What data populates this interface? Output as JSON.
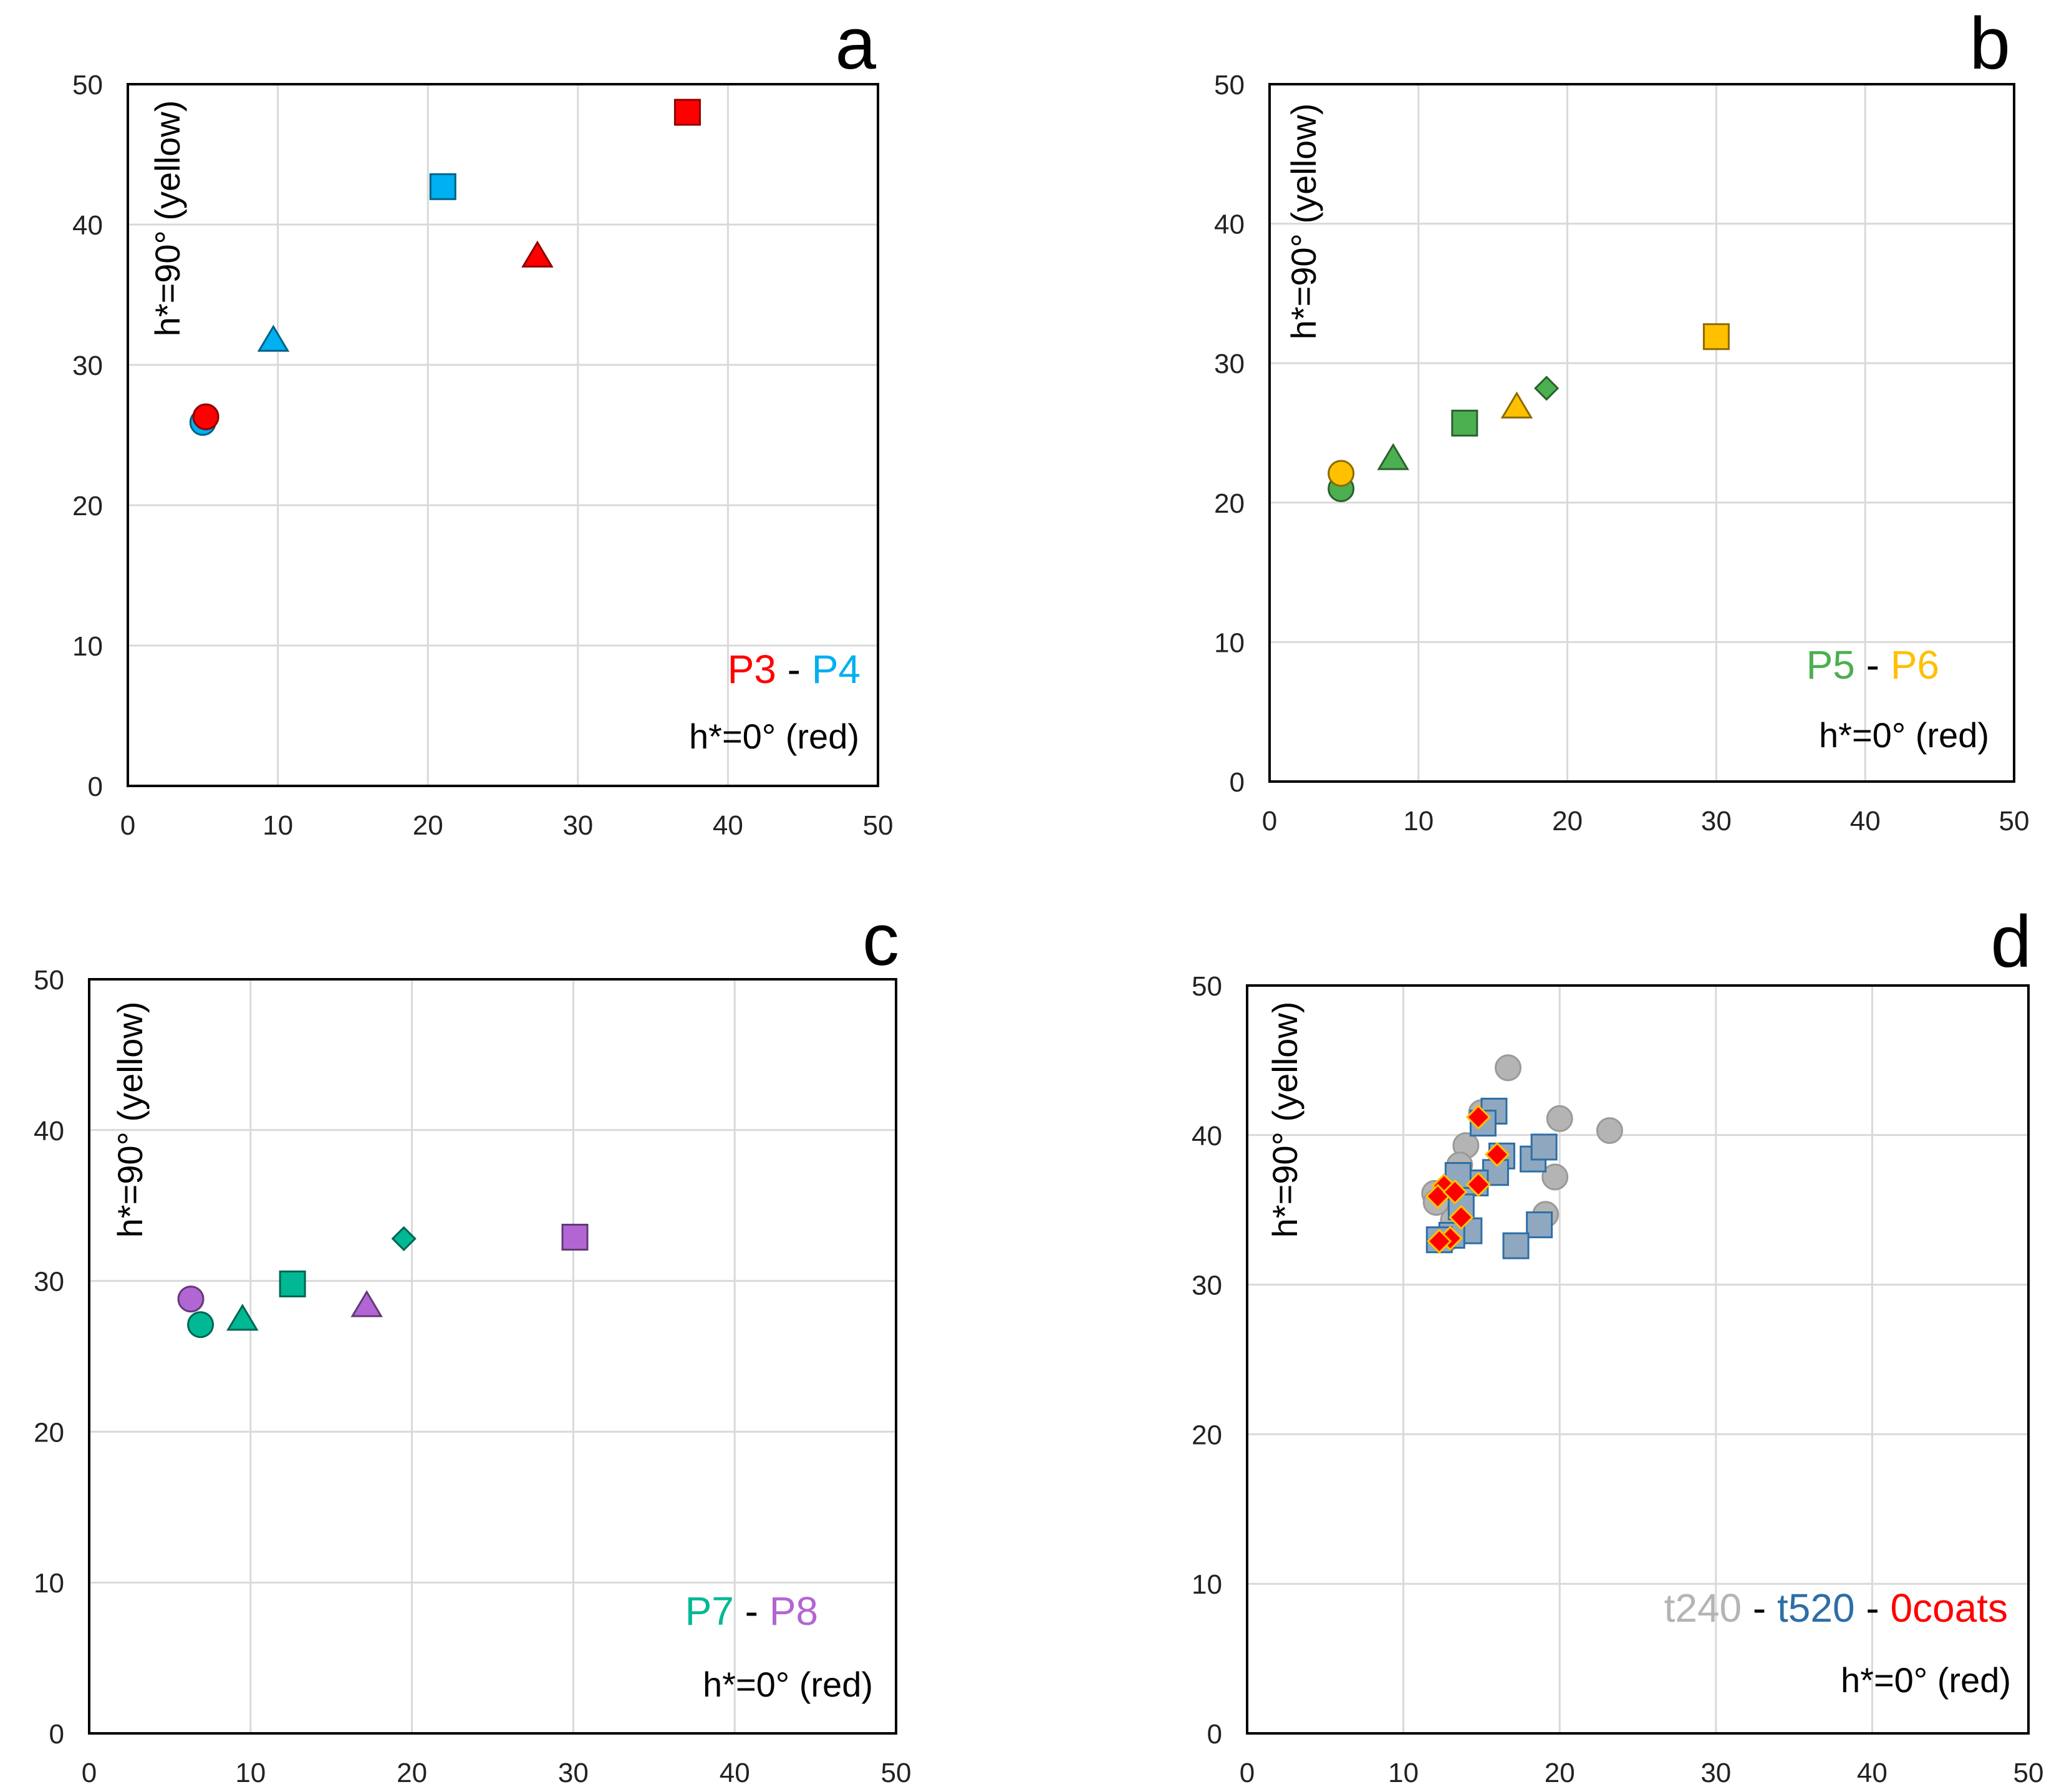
{
  "chart_data": [
    {
      "panel": "a",
      "type": "scatter",
      "title": "",
      "xlabel": "",
      "ylabel": "h*=90° (yellow)",
      "annotation": "h*=0° (red)",
      "xlim": [
        0,
        50
      ],
      "ylim": [
        0,
        50
      ],
      "x_ticks": [
        "0",
        "10",
        "20",
        "30",
        "40",
        "50"
      ],
      "y_ticks": [
        "0",
        "10",
        "20",
        "30",
        "40",
        "50"
      ],
      "grid": true,
      "legend": {
        "position": "bottom-right",
        "items": [
          {
            "text": "P3",
            "color": "#ff0000"
          },
          {
            "text": " - ",
            "color": "#000000"
          },
          {
            "text": "P4",
            "color": "#00b0f0"
          }
        ]
      },
      "series": [
        {
          "name": "P4",
          "color": "#00b0f0",
          "points": [
            {
              "x": 5,
              "y": 25.9,
              "marker": "circle"
            },
            {
              "x": 9.7,
              "y": 31.8,
              "marker": "triangle"
            },
            {
              "x": 21,
              "y": 42.7,
              "marker": "square"
            }
          ]
        },
        {
          "name": "P3",
          "color": "#ff0000",
          "points": [
            {
              "x": 5.2,
              "y": 26.3,
              "marker": "circle"
            },
            {
              "x": 27.3,
              "y": 37.8,
              "marker": "triangle"
            },
            {
              "x": 37.3,
              "y": 48,
              "marker": "square"
            }
          ]
        }
      ]
    },
    {
      "panel": "b",
      "type": "scatter",
      "title": "",
      "xlabel": "",
      "ylabel": "h*=90° (yellow)",
      "annotation": "h*=0° (red)",
      "xlim": [
        0,
        50
      ],
      "ylim": [
        0,
        50
      ],
      "x_ticks": [
        "0",
        "10",
        "20",
        "30",
        "40",
        "50"
      ],
      "y_ticks": [
        "0",
        "10",
        "20",
        "30",
        "40",
        "50"
      ],
      "grid": true,
      "legend": {
        "position": "bottom-right",
        "items": [
          {
            "text": "P5",
            "color": "#4caf50"
          },
          {
            "text": " - ",
            "color": "#000000"
          },
          {
            "text": "P6",
            "color": "#ffc000"
          }
        ]
      },
      "series": [
        {
          "name": "P5",
          "color": "#4caf50",
          "points": [
            {
              "x": 4.8,
              "y": 21,
              "marker": "circle"
            },
            {
              "x": 8.3,
              "y": 23.2,
              "marker": "triangle"
            },
            {
              "x": 13.1,
              "y": 25.7,
              "marker": "square"
            },
            {
              "x": 18.6,
              "y": 28.2,
              "marker": "diamond"
            }
          ]
        },
        {
          "name": "P6",
          "color": "#ffc000",
          "points": [
            {
              "x": 4.8,
              "y": 22.1,
              "marker": "circle"
            },
            {
              "x": 16.6,
              "y": 26.9,
              "marker": "triangle"
            },
            {
              "x": 30,
              "y": 31.9,
              "marker": "square"
            }
          ]
        }
      ]
    },
    {
      "panel": "c",
      "type": "scatter",
      "title": "",
      "xlabel": "",
      "ylabel": "h*=90° (yellow)",
      "annotation": "h*=0° (red)",
      "xlim": [
        0,
        50
      ],
      "ylim": [
        0,
        50
      ],
      "x_ticks": [
        "0",
        "10",
        "20",
        "30",
        "40",
        "50"
      ],
      "y_ticks": [
        "0",
        "10",
        "20",
        "30",
        "40",
        "50"
      ],
      "grid": true,
      "legend": {
        "position": "bottom-right",
        "items": [
          {
            "text": "P7",
            "color": "#00b894"
          },
          {
            "text": " - ",
            "color": "#000000"
          },
          {
            "text": "P8",
            "color": "#b266d4"
          }
        ]
      },
      "series": [
        {
          "name": "P8",
          "color": "#b266d4",
          "points": [
            {
              "x": 6.3,
              "y": 28.8,
              "marker": "circle"
            },
            {
              "x": 17.2,
              "y": 28.4,
              "marker": "triangle"
            },
            {
              "x": 30.1,
              "y": 32.9,
              "marker": "square"
            }
          ]
        },
        {
          "name": "P7",
          "color": "#00b894",
          "points": [
            {
              "x": 6.9,
              "y": 27.1,
              "marker": "circle"
            },
            {
              "x": 9.5,
              "y": 27.5,
              "marker": "triangle"
            },
            {
              "x": 12.6,
              "y": 29.8,
              "marker": "square"
            },
            {
              "x": 19.5,
              "y": 32.8,
              "marker": "diamond"
            }
          ]
        }
      ]
    },
    {
      "panel": "d",
      "type": "scatter",
      "title": "",
      "xlabel": "",
      "ylabel": "h*=90° (yellow)",
      "annotation": "h*=0° (red)",
      "xlim": [
        0,
        50
      ],
      "ylim": [
        0,
        50
      ],
      "x_ticks": [
        "0",
        "10",
        "20",
        "30",
        "40",
        "50"
      ],
      "y_ticks": [
        "0",
        "10",
        "20",
        "30",
        "40",
        "50"
      ],
      "grid": true,
      "legend": {
        "position": "bottom-right",
        "items": [
          {
            "text": "t240",
            "color": "#b4b4b4"
          },
          {
            "text": " - ",
            "color": "#000000"
          },
          {
            "text": "t520",
            "color": "#2e6ea6"
          },
          {
            "text": " - ",
            "color": "#000000"
          },
          {
            "text": "0coats",
            "color": "#ff0000"
          }
        ]
      },
      "series": [
        {
          "name": "t240",
          "color": "#b4b4b4",
          "points": [
            {
              "x": 16.7,
              "y": 44.5,
              "marker": "circle"
            },
            {
              "x": 20,
              "y": 41.1,
              "marker": "circle"
            },
            {
              "x": 23.2,
              "y": 40.3,
              "marker": "circle"
            },
            {
              "x": 19.7,
              "y": 37.2,
              "marker": "circle"
            },
            {
              "x": 19.1,
              "y": 34.7,
              "marker": "circle"
            },
            {
              "x": 14,
              "y": 39.3,
              "marker": "circle"
            },
            {
              "x": 13.6,
              "y": 38,
              "marker": "circle"
            },
            {
              "x": 12,
              "y": 36.1,
              "marker": "circle"
            },
            {
              "x": 12.1,
              "y": 35.5,
              "marker": "circle"
            },
            {
              "x": 15,
              "y": 41.5,
              "marker": "circle"
            },
            {
              "x": 13.2,
              "y": 34.3,
              "marker": "circle"
            },
            {
              "x": 12.8,
              "y": 33.1,
              "marker": "circle"
            }
          ]
        },
        {
          "name": "t520",
          "color": "#2e6ea6",
          "points": [
            {
              "x": 15.8,
              "y": 41.6,
              "marker": "square"
            },
            {
              "x": 15.1,
              "y": 40.8,
              "marker": "square"
            },
            {
              "x": 16.3,
              "y": 38.6,
              "marker": "square"
            },
            {
              "x": 15.9,
              "y": 37.5,
              "marker": "square"
            },
            {
              "x": 14.6,
              "y": 36.8,
              "marker": "square"
            },
            {
              "x": 13.5,
              "y": 37.3,
              "marker": "square"
            },
            {
              "x": 18.3,
              "y": 38.4,
              "marker": "square"
            },
            {
              "x": 19,
              "y": 39.2,
              "marker": "square"
            },
            {
              "x": 13.7,
              "y": 35.2,
              "marker": "square"
            },
            {
              "x": 14.2,
              "y": 33.6,
              "marker": "square"
            },
            {
              "x": 13.1,
              "y": 33.3,
              "marker": "square"
            },
            {
              "x": 12.3,
              "y": 33,
              "marker": "square"
            },
            {
              "x": 18.7,
              "y": 34,
              "marker": "square"
            },
            {
              "x": 17.2,
              "y": 32.6,
              "marker": "square"
            }
          ]
        },
        {
          "name": "0coats",
          "color": "#ff0000",
          "points": [
            {
              "x": 14.8,
              "y": 41.2,
              "marker": "diamond"
            },
            {
              "x": 16,
              "y": 38.7,
              "marker": "diamond"
            },
            {
              "x": 14.8,
              "y": 36.7,
              "marker": "diamond"
            },
            {
              "x": 12.6,
              "y": 36.6,
              "marker": "diamond"
            },
            {
              "x": 12.2,
              "y": 35.9,
              "marker": "diamond"
            },
            {
              "x": 13.3,
              "y": 36.2,
              "marker": "diamond"
            },
            {
              "x": 13.7,
              "y": 34.5,
              "marker": "diamond"
            },
            {
              "x": 13,
              "y": 33.1,
              "marker": "diamond"
            },
            {
              "x": 12.3,
              "y": 32.9,
              "marker": "diamond"
            }
          ]
        }
      ]
    }
  ]
}
